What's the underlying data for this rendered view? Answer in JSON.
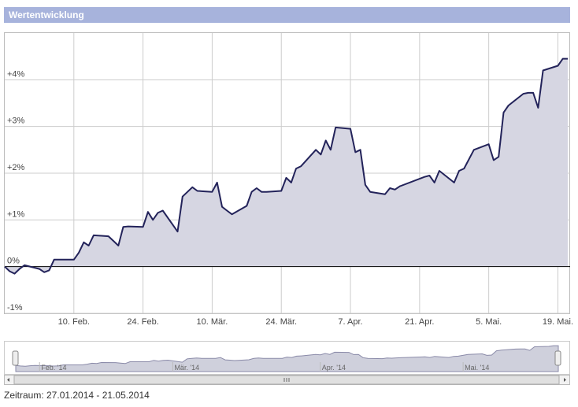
{
  "header": {
    "title": "Wertentwicklung"
  },
  "chart_data": {
    "type": "area",
    "x": [
      "2014-01-27",
      "2014-01-28",
      "2014-01-29",
      "2014-01-30",
      "2014-01-31",
      "2014-02-03",
      "2014-02-04",
      "2014-02-05",
      "2014-02-06",
      "2014-02-07",
      "2014-02-10",
      "2014-02-11",
      "2014-02-12",
      "2014-02-13",
      "2014-02-14",
      "2014-02-17",
      "2014-02-18",
      "2014-02-19",
      "2014-02-20",
      "2014-02-21",
      "2014-02-24",
      "2014-02-25",
      "2014-02-26",
      "2014-02-27",
      "2014-02-28",
      "2014-03-03",
      "2014-03-04",
      "2014-03-05",
      "2014-03-06",
      "2014-03-07",
      "2014-03-10",
      "2014-03-11",
      "2014-03-12",
      "2014-03-13",
      "2014-03-14",
      "2014-03-17",
      "2014-03-18",
      "2014-03-19",
      "2014-03-20",
      "2014-03-21",
      "2014-03-24",
      "2014-03-25",
      "2014-03-26",
      "2014-03-27",
      "2014-03-28",
      "2014-03-31",
      "2014-04-01",
      "2014-04-02",
      "2014-04-03",
      "2014-04-04",
      "2014-04-07",
      "2014-04-08",
      "2014-04-09",
      "2014-04-10",
      "2014-04-11",
      "2014-04-14",
      "2014-04-15",
      "2014-04-16",
      "2014-04-17",
      "2014-04-22",
      "2014-04-23",
      "2014-04-24",
      "2014-04-25",
      "2014-04-28",
      "2014-04-29",
      "2014-04-30",
      "2014-05-02",
      "2014-05-05",
      "2014-05-06",
      "2014-05-07",
      "2014-05-08",
      "2014-05-09",
      "2014-05-12",
      "2014-05-13",
      "2014-05-14",
      "2014-05-15",
      "2014-05-16",
      "2014-05-19",
      "2014-05-20",
      "2014-05-21"
    ],
    "values": [
      0,
      -0.1,
      -0.15,
      -0.05,
      0.03,
      -0.05,
      -0.12,
      -0.08,
      0.15,
      0.15,
      0.15,
      0.3,
      0.52,
      0.45,
      0.67,
      0.65,
      0.55,
      0.45,
      0.85,
      0.86,
      0.85,
      1.17,
      1.0,
      1.15,
      1.2,
      0.75,
      1.5,
      1.6,
      1.7,
      1.62,
      1.6,
      1.8,
      1.28,
      1.2,
      1.12,
      1.3,
      1.6,
      1.68,
      1.6,
      1.6,
      1.62,
      1.9,
      1.8,
      2.1,
      2.15,
      2.5,
      2.4,
      2.7,
      2.5,
      2.98,
      2.95,
      2.45,
      2.5,
      1.75,
      1.6,
      1.55,
      1.68,
      1.65,
      1.72,
      1.92,
      1.95,
      1.8,
      2.05,
      1.8,
      2.05,
      2.1,
      2.5,
      2.62,
      2.28,
      2.35,
      3.3,
      3.45,
      3.7,
      3.72,
      3.72,
      3.4,
      4.2,
      4.3,
      4.45,
      4.45
    ],
    "color": "#23235a",
    "fill_color": "#d6d6e2",
    "xlim": [
      "2014-01-27",
      "2014-05-21"
    ],
    "xticks": [
      {
        "value": "2014-02-10",
        "label": "10. Feb."
      },
      {
        "value": "2014-02-24",
        "label": "24. Feb."
      },
      {
        "value": "2014-03-10",
        "label": "10. Mär."
      },
      {
        "value": "2014-03-24",
        "label": "24. Mär."
      },
      {
        "value": "2014-04-07",
        "label": "7. Apr."
      },
      {
        "value": "2014-04-21",
        "label": "21. Apr."
      },
      {
        "value": "2014-05-05",
        "label": "5. Mai."
      },
      {
        "value": "2014-05-19",
        "label": "19. Mai."
      }
    ],
    "ylim": [
      -1,
      5
    ],
    "yticks": [
      {
        "value": -1,
        "label": "-1%"
      },
      {
        "value": 0,
        "label": "0%"
      },
      {
        "value": 1,
        "label": "+1%"
      },
      {
        "value": 2,
        "label": "+2%"
      },
      {
        "value": 3,
        "label": "+3%"
      },
      {
        "value": 4,
        "label": "+4%"
      }
    ],
    "grid": true
  },
  "navigator": {
    "labels": [
      {
        "value": "2014-02-01",
        "label": "Feb. '14"
      },
      {
        "value": "2014-03-01",
        "label": "Mär. '14"
      },
      {
        "value": "2014-04-01",
        "label": "Apr. '14"
      },
      {
        "value": "2014-05-01",
        "label": "Mai. '14"
      }
    ]
  },
  "footer": {
    "text": "Zeitraum: 27.01.2014 - 21.05.2014"
  }
}
